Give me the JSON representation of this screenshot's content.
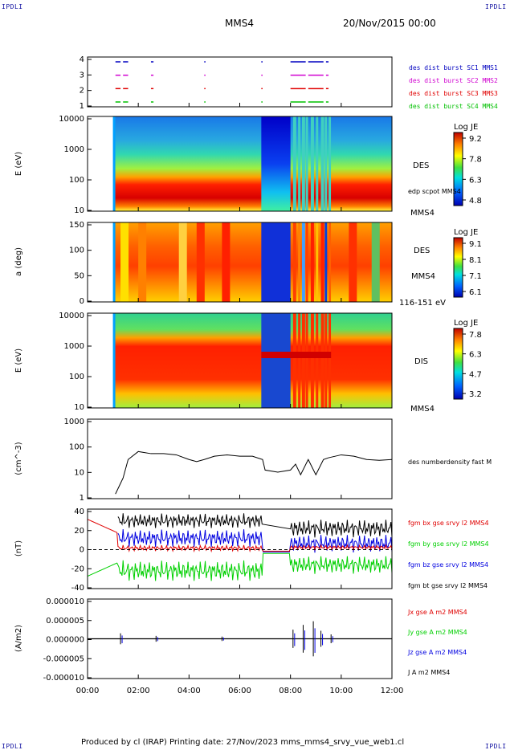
{
  "corners": {
    "top_left": "IPDLI",
    "top_right": "IPDLI",
    "bottom_left": "IPDLI",
    "bottom_right": "IPDLI"
  },
  "header": {
    "spacecraft": "MMS4",
    "date": "20/Nov/2015 00:00"
  },
  "footer": "Produced by cl (IRAP)   Printing date: 27/Nov/2023   mms_mms4_srvy_vue_web1.cl",
  "colors": {
    "red": "#e00000",
    "green": "#00d000",
    "blue": "#0000e0",
    "black": "#000000",
    "magenta": "#d000d0"
  },
  "chart_data": [
    {
      "id": "burst",
      "type": "scatter",
      "ylabel": "",
      "yticks": [
        "1",
        "2",
        "3",
        "4"
      ],
      "series": [
        {
          "name": "des dist burst SC1 MMS1",
          "color": "#0000c0"
        },
        {
          "name": "des dist burst SC2 MMS2",
          "color": "#d000d0"
        },
        {
          "name": "des dist burst SC3 MMS3",
          "color": "#e00000"
        },
        {
          "name": "des dist burst SC4 MMS4",
          "color": "#00c000"
        }
      ]
    },
    {
      "id": "des_energy",
      "type": "heatmap",
      "ylabel": "E (eV)",
      "yticks": [
        "10",
        "100",
        "1000",
        "10000"
      ],
      "labels": [
        "DES",
        "edp scpot MMS4",
        "MMS4"
      ],
      "colorbar": {
        "title": "Log JE",
        "ticks": [
          "9.2",
          "7.8",
          "6.3",
          "4.8"
        ]
      }
    },
    {
      "id": "des_pitch",
      "type": "heatmap",
      "ylabel": "a (deg)",
      "yticks": [
        "0",
        "50",
        "100",
        "150"
      ],
      "labels": [
        "DES",
        "MMS4",
        "116-151 eV"
      ],
      "colorbar": {
        "title": "Log JE",
        "ticks": [
          "9.1",
          "8.1",
          "7.1",
          "6.1"
        ]
      }
    },
    {
      "id": "dis_energy",
      "type": "heatmap",
      "ylabel": "E (eV)",
      "yticks": [
        "10",
        "100",
        "1000",
        "10000"
      ],
      "labels": [
        "DIS",
        "MMS4"
      ],
      "colorbar": {
        "title": "Log JE",
        "ticks": [
          "7.8",
          "6.3",
          "4.7",
          "3.2"
        ]
      }
    },
    {
      "id": "density",
      "type": "line",
      "ylabel": "(cm^-3)",
      "yticks": [
        "1",
        "10",
        "100",
        "1000"
      ],
      "labels": [
        "des numberdensity fast M"
      ],
      "x": [
        1.1,
        1.25,
        1.4,
        1.6,
        2.0,
        2.5,
        3.0,
        3.5,
        4.0,
        4.3,
        4.6,
        5.0,
        5.5,
        6.0,
        6.5,
        6.9,
        7.0,
        7.5,
        8.0,
        8.2,
        8.4,
        8.7,
        9.0,
        9.3,
        9.5,
        10.0,
        10.5,
        11.0,
        11.5,
        12.0
      ],
      "y": [
        1.5,
        3,
        6,
        30,
        60,
        50,
        50,
        45,
        30,
        25,
        30,
        40,
        45,
        40,
        40,
        30,
        12,
        10,
        12,
        20,
        8,
        30,
        8,
        30,
        35,
        45,
        40,
        30,
        28,
        30
      ],
      "series": [
        {
          "name": "des numberdensity fast M",
          "color": "#000000"
        }
      ]
    },
    {
      "id": "bfield",
      "type": "line",
      "ylabel": "(nT)",
      "yticks": [
        "-40",
        "-20",
        "0",
        "20",
        "40"
      ],
      "series": [
        {
          "name": "fgm bx gse srvy l2 MMS4",
          "color": "#e00000"
        },
        {
          "name": "fgm by gse srvy l2 MMS4",
          "color": "#00d000"
        },
        {
          "name": "fgm bz gse srvy l2 MMS4",
          "color": "#0000e0"
        },
        {
          "name": "fgm bt gse srvy l2 MMS4",
          "color": "#000000"
        }
      ]
    },
    {
      "id": "current",
      "type": "line",
      "ylabel": "(A/m2)",
      "yticks": [
        "-0.000010",
        "-0.000005",
        "0.000000",
        "0.000005",
        "0.000010"
      ],
      "series": [
        {
          "name": "Jx gse A m2 MMS4",
          "color": "#e00000"
        },
        {
          "name": "Jy gse A m2 MMS4",
          "color": "#00d000"
        },
        {
          "name": "Jz gse A m2 MMS4",
          "color": "#0000e0"
        },
        {
          "name": "J A m2 MMS4",
          "color": "#000000"
        }
      ]
    }
  ],
  "xaxis": {
    "ticks": [
      "00:00",
      "02:00",
      "04:00",
      "06:00",
      "08:00",
      "10:00",
      "12:00"
    ]
  }
}
